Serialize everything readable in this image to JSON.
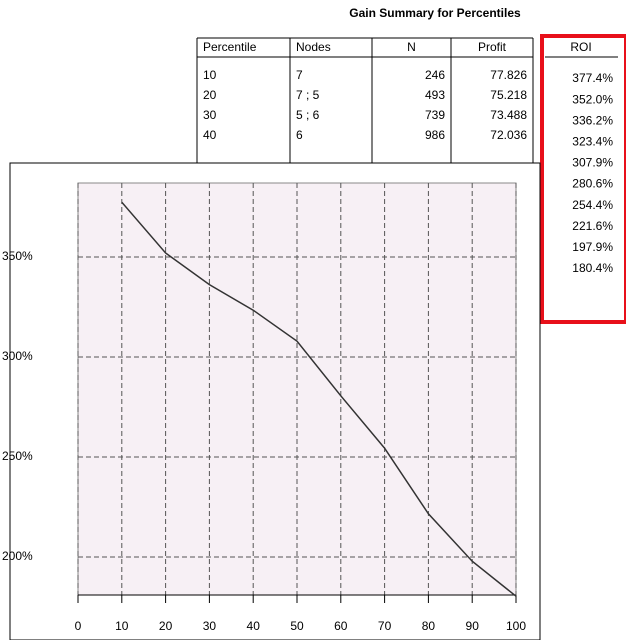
{
  "title": "Gain Summary for Percentiles",
  "table": {
    "columns": [
      "Percentile",
      "Nodes",
      "N",
      "Profit",
      "ROI"
    ],
    "rows": [
      [
        "10",
        "7",
        "246",
        "77.826"
      ],
      [
        "20",
        "7 ; 5",
        "493",
        "75.218"
      ],
      [
        "30",
        "5 ; 6",
        "739",
        "73.488"
      ],
      [
        "40",
        "6",
        "986",
        "72.036"
      ]
    ],
    "roi": [
      "377.4%",
      "352.0%",
      "336.2%",
      "323.4%",
      "307.9%",
      "280.6%",
      "254.4%",
      "221.6%",
      "197.9%",
      "180.4%"
    ]
  },
  "chart_data": {
    "type": "line",
    "x": [
      10,
      20,
      30,
      40,
      50,
      60,
      70,
      80,
      90,
      100
    ],
    "values": [
      377.4,
      352.0,
      336.2,
      323.4,
      307.9,
      280.6,
      254.4,
      221.6,
      197.9,
      180.4
    ],
    "color": "#333333",
    "xlim": [
      0,
      100
    ],
    "xticks": [
      0,
      10,
      20,
      30,
      40,
      50,
      60,
      70,
      80,
      90,
      100
    ],
    "ylim": [
      181,
      387
    ],
    "yticks": [
      {
        "value": 200,
        "label": "200%"
      },
      {
        "value": 250,
        "label": "250%"
      },
      {
        "value": 300,
        "label": "300%"
      },
      {
        "value": 350,
        "label": "350%"
      }
    ],
    "grid": true
  }
}
